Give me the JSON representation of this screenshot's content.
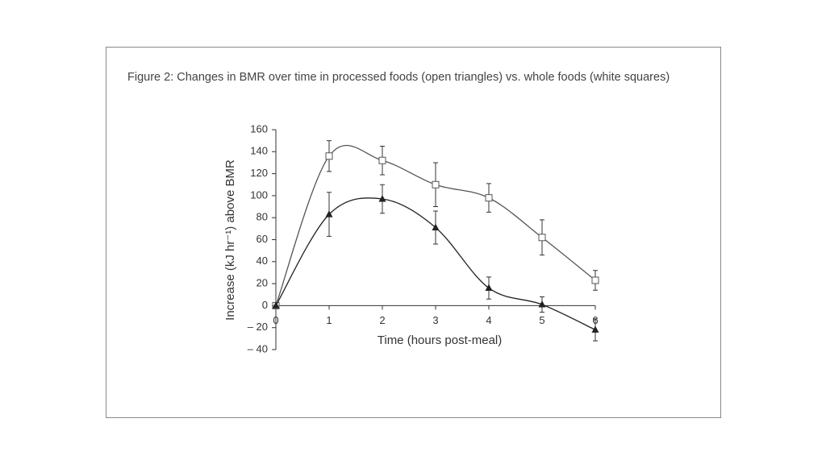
{
  "caption": "Figure 2: Changes in BMR over time in processed foods (open triangles) vs. whole foods (white squares)",
  "chart_data": {
    "type": "line",
    "xlabel": "Time (hours post-meal)",
    "ylabel": "Increase (kJ hr⁻¹) above BMR",
    "x": [
      0,
      1,
      2,
      3,
      4,
      5,
      6
    ],
    "xlim": [
      0,
      6
    ],
    "xticks": [
      0,
      1,
      2,
      3,
      4,
      5,
      6
    ],
    "ylim": [
      -40,
      160
    ],
    "yticks": [
      {
        "value": -40,
        "label": "– 40"
      },
      {
        "value": -20,
        "label": "– 20"
      },
      0,
      20,
      40,
      60,
      80,
      100,
      120,
      140,
      160
    ],
    "series": [
      {
        "marker": "square",
        "color": "#555555",
        "values": [
          0,
          136,
          132,
          110,
          98,
          62,
          23
        ],
        "errors": [
          0,
          14,
          13,
          20,
          13,
          16,
          9
        ]
      },
      {
        "marker": "triangle",
        "color": "#222222",
        "values": [
          0,
          83,
          97,
          71,
          16,
          1,
          -22
        ],
        "errors": [
          0,
          20,
          13,
          15,
          10,
          7,
          10
        ]
      }
    ]
  }
}
